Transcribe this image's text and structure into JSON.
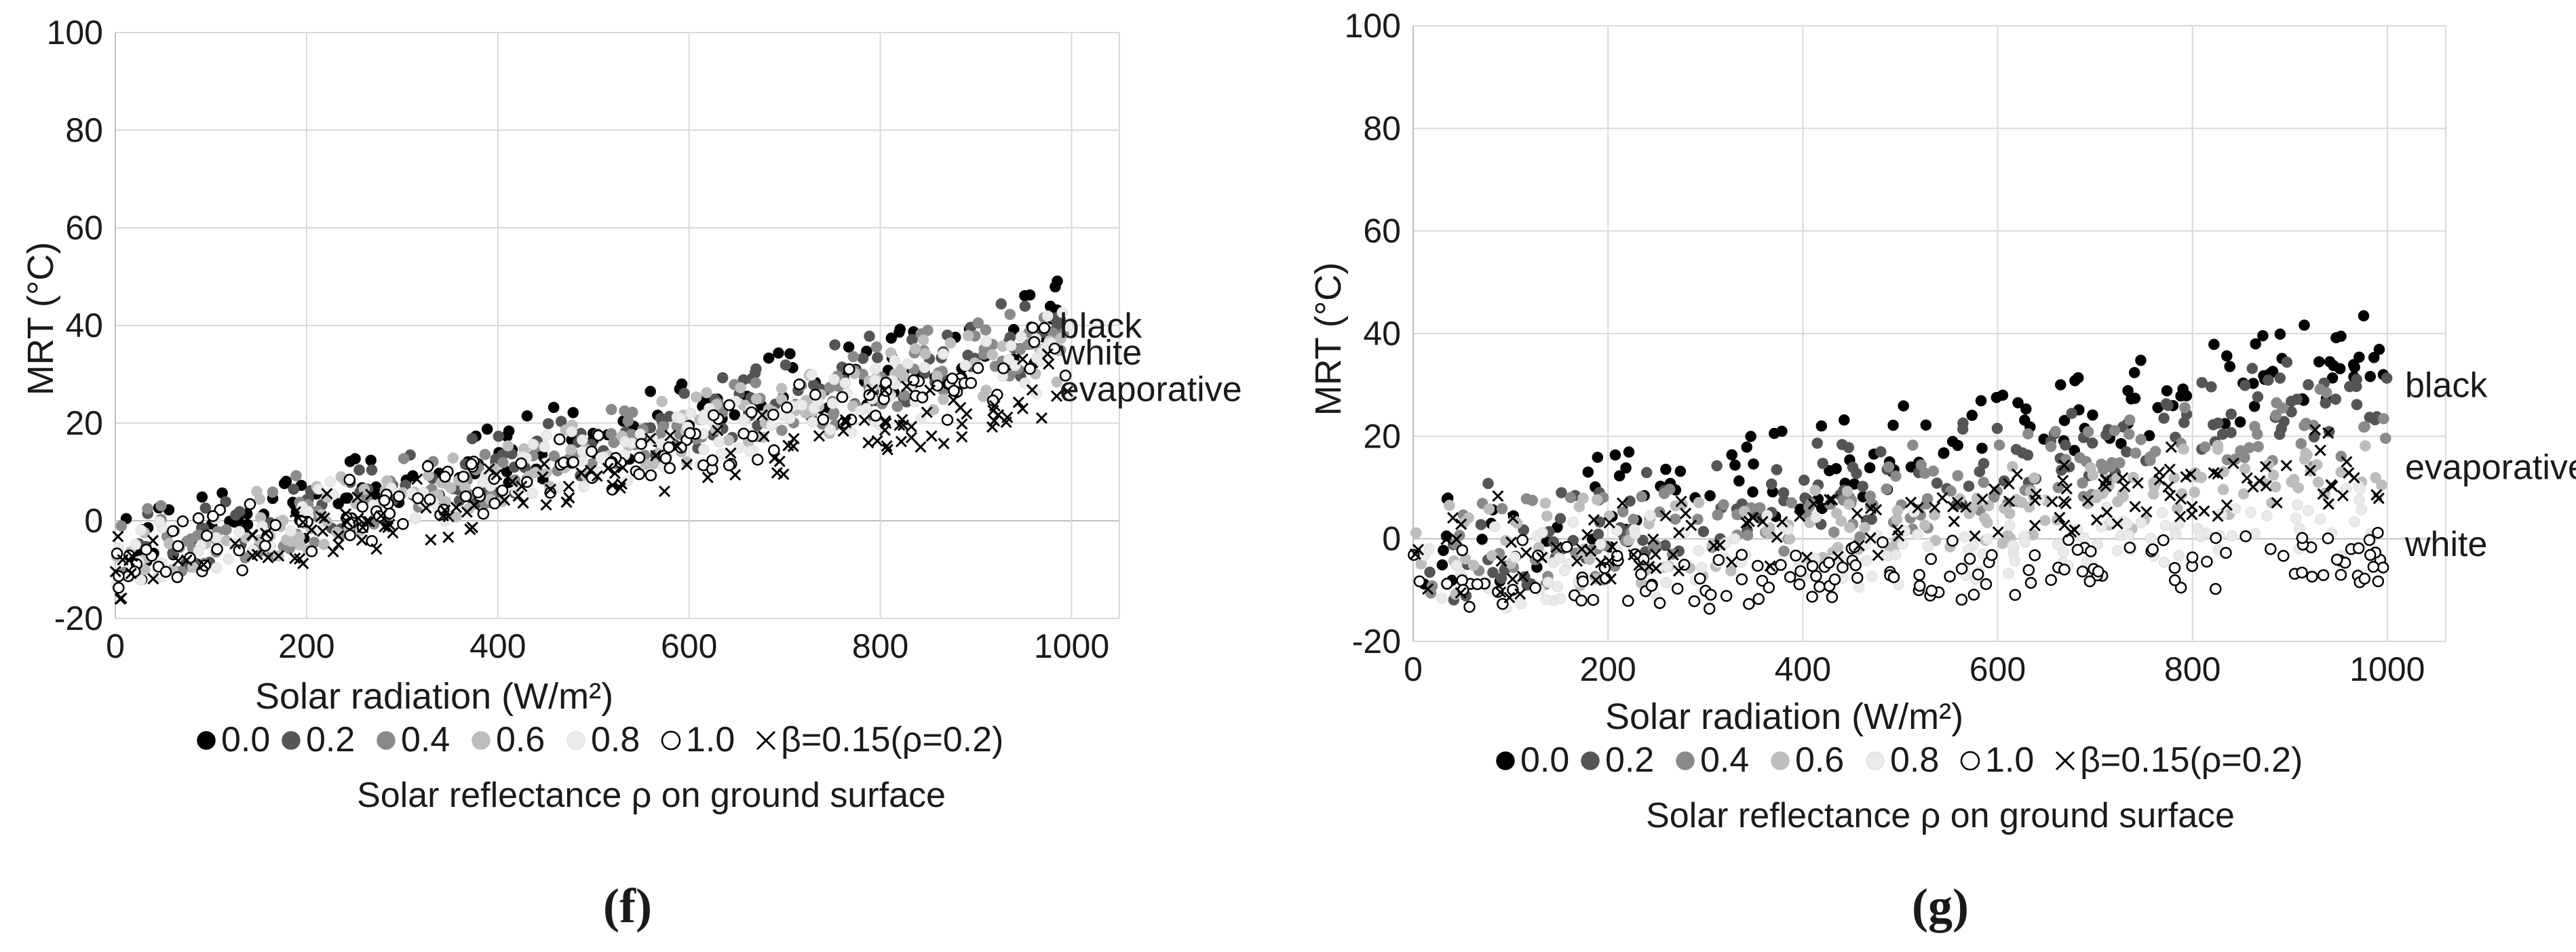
{
  "series_legend": [
    {
      "key": "rho00",
      "label": "0.0",
      "fill": "#000000",
      "stroke": "#000000",
      "marker": "circle"
    },
    {
      "key": "rho02",
      "label": "0.2",
      "fill": "#555555",
      "stroke": "#555555",
      "marker": "circle"
    },
    {
      "key": "rho04",
      "label": "0.4",
      "fill": "#8a8a8a",
      "stroke": "#8a8a8a",
      "marker": "circle"
    },
    {
      "key": "rho06",
      "label": "0.6",
      "fill": "#bdbdbd",
      "stroke": "#bdbdbd",
      "marker": "circle"
    },
    {
      "key": "rho08",
      "label": "0.8",
      "fill": "#eaeaea",
      "stroke": "#e0e0e0",
      "marker": "circle"
    },
    {
      "key": "rho10",
      "label": "1.0",
      "fill": "#ffffff",
      "stroke": "#000000",
      "marker": "circle"
    },
    {
      "key": "beta",
      "label": "β=0.15(ρ=0.2)",
      "fill": "none",
      "stroke": "#000000",
      "marker": "x"
    }
  ],
  "chart_data": [
    {
      "id": "f",
      "type": "scatter",
      "panel_label": "(f)",
      "xlabel": "Solar radiation (W/m²)",
      "ylabel": "MRT (°C)",
      "legend_title": "Solar reflectance ρ on ground surface",
      "xlim": [
        0,
        1050
      ],
      "ylim": [
        -20,
        100
      ],
      "xticks": [
        0,
        200,
        400,
        600,
        800,
        1000
      ],
      "yticks": [
        -20,
        0,
        20,
        40,
        60,
        80,
        100
      ],
      "grid": true,
      "annotations": [
        {
          "text": "black",
          "x": 1030,
          "y": 40
        },
        {
          "text": "white",
          "x": 1030,
          "y": 34.5
        },
        {
          "text": "evaporative",
          "x": 1030,
          "y": 27
        }
      ],
      "series": [
        {
          "key": "rho00",
          "low_slope": 0.047,
          "low_int": -9,
          "high_slope": 0.052,
          "high_int": -5,
          "spread": 4.5
        },
        {
          "key": "rho02",
          "low_slope": 0.046,
          "low_int": -9.5,
          "high_slope": 0.05,
          "high_int": -6,
          "spread": 4.5
        },
        {
          "key": "rho04",
          "low_slope": 0.045,
          "low_int": -10,
          "high_slope": 0.049,
          "high_int": -7,
          "spread": 4.5
        },
        {
          "key": "rho06",
          "low_slope": 0.044,
          "low_int": -10.5,
          "high_slope": 0.048,
          "high_int": -7.5,
          "spread": 4.5
        },
        {
          "key": "rho08",
          "low_slope": 0.043,
          "low_int": -11,
          "high_slope": 0.047,
          "high_int": -8,
          "spread": 4.5
        },
        {
          "key": "rho10",
          "low_slope": 0.042,
          "low_int": -11.5,
          "high_slope": 0.046,
          "high_int": -8.5,
          "spread": 4.5
        },
        {
          "key": "beta",
          "low_slope": 0.037,
          "low_int": -12,
          "high_slope": 0.041,
          "high_int": -10,
          "spread": 4.5
        }
      ]
    },
    {
      "id": "g",
      "type": "scatter",
      "panel_label": "(g)",
      "xlabel": "Solar radiation (W/m²)",
      "ylabel": "MRT (°C)",
      "legend_title": "Solar reflectance ρ on ground surface",
      "xlim": [
        0,
        1060
      ],
      "ylim": [
        -20,
        100
      ],
      "xticks": [
        0,
        200,
        400,
        600,
        800,
        1000
      ],
      "yticks": [
        -20,
        0,
        20,
        40,
        60,
        80,
        100
      ],
      "grid": true,
      "annotations": [
        {
          "text": "black",
          "x": 1060,
          "y": 30
        },
        {
          "text": "evaporative",
          "x": 1060,
          "y": 14
        },
        {
          "text": "white",
          "x": 1060,
          "y": -1
        }
      ],
      "series": [
        {
          "key": "rho00",
          "low_slope": 0.042,
          "low_int": -8,
          "high_slope": 0.038,
          "high_int": 2,
          "spread": 5
        },
        {
          "key": "rho02",
          "low_slope": 0.036,
          "low_int": -8.5,
          "high_slope": 0.033,
          "high_int": 0,
          "spread": 5
        },
        {
          "key": "rho04",
          "low_slope": 0.03,
          "low_int": -9,
          "high_slope": 0.028,
          "high_int": -1,
          "spread": 5
        },
        {
          "key": "rho06",
          "low_slope": 0.022,
          "low_int": -9.5,
          "high_slope": 0.02,
          "high_int": -3,
          "spread": 5
        },
        {
          "key": "rho08",
          "low_slope": 0.012,
          "low_int": -10,
          "high_slope": 0.012,
          "high_int": -5,
          "spread": 5
        },
        {
          "key": "rho10",
          "low_slope": 0.006,
          "low_int": -11,
          "high_slope": 0.004,
          "high_int": -7,
          "spread": 4.5
        },
        {
          "key": "beta",
          "low_slope": 0.022,
          "low_int": -9,
          "high_slope": 0.022,
          "high_int": -3,
          "spread": 5
        }
      ]
    }
  ]
}
